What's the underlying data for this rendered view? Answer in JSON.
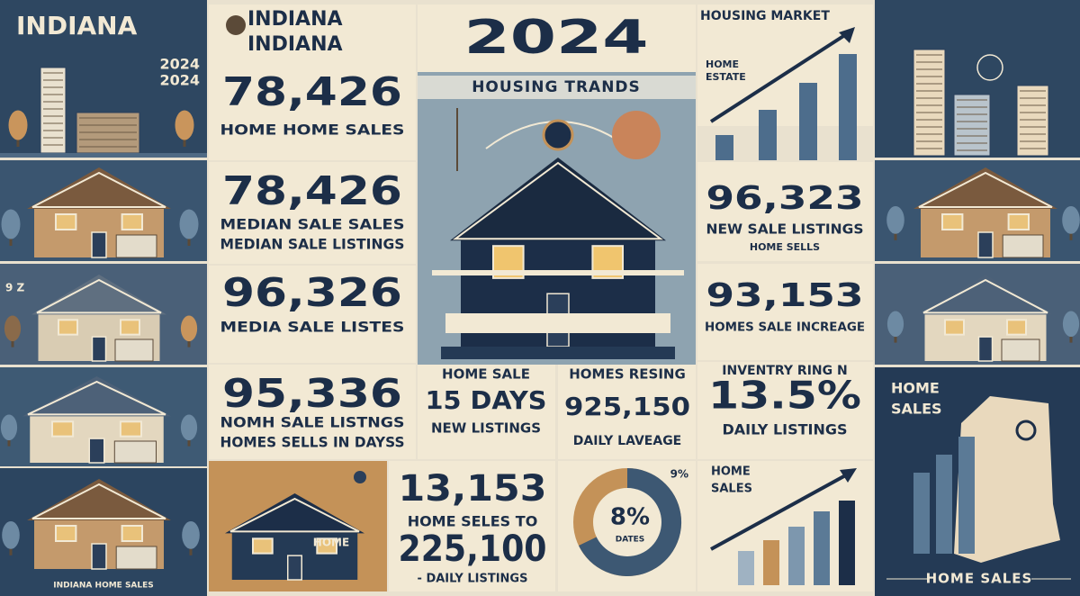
{
  "left": {
    "title": "INDIANA",
    "year_1": "2024",
    "year_2": "2024",
    "side_label": "9 Z",
    "footer": "INDIANA HOME SALES"
  },
  "stats": {
    "header_1": "INDIANA",
    "header_2": "INDIANA",
    "items": [
      {
        "number": "78,426",
        "lines": [
          "HOME HOME SALES"
        ]
      },
      {
        "number": "78,426",
        "lines": [
          "MEDIAN SALE SALES",
          "MEDIAN SALE LISTINGS"
        ]
      },
      {
        "number": "96,326",
        "lines": [
          "MEDIA SALE LISTES"
        ]
      },
      {
        "number": "95,336",
        "lines": [
          "NOMH SALE LISTNGS",
          "HOMES SELLS IN DAYSS"
        ]
      }
    ],
    "house_label": "HOME"
  },
  "center": {
    "year": "2024",
    "subtitle": "HOUSING TRANDS"
  },
  "tiles": {
    "a": {
      "top": "HOME SALE",
      "number": "15 DAYS",
      "bottom": "NEW LISTINGS"
    },
    "b": {
      "top": "HOMES RESING",
      "number": "925,150",
      "bottom": "DAILY LAVEAGE"
    },
    "c": {
      "number_1": "13,153",
      "middle": "HOME SELES TO",
      "number_2": "225,100",
      "bottom": "- DAILY LISTINGS"
    },
    "d": {
      "corner": "9%",
      "center": "8%",
      "caption": "DATES"
    }
  },
  "right": {
    "chart_title": "HOUSING MARKET",
    "chart_label_1": "HOME",
    "chart_label_2": "ESTATE",
    "stat_1": {
      "number": "96,323",
      "line_1": "NEW SALE LISTINGS",
      "line_2": "HOME SELLS"
    },
    "stat_2": {
      "number": "93,153",
      "line_1": "HOMES SALE INCREAGE"
    },
    "stat_3": {
      "top": "INVENTRY RING N",
      "number": "13.5%",
      "bottom": "DAILY LISTINGS"
    },
    "chart_2_label_1": "HOME",
    "chart_2_label_2": "SALES"
  },
  "far_right": {
    "label_1": "HOME",
    "label_2": "SALES",
    "footer": "HOME SALES"
  }
}
